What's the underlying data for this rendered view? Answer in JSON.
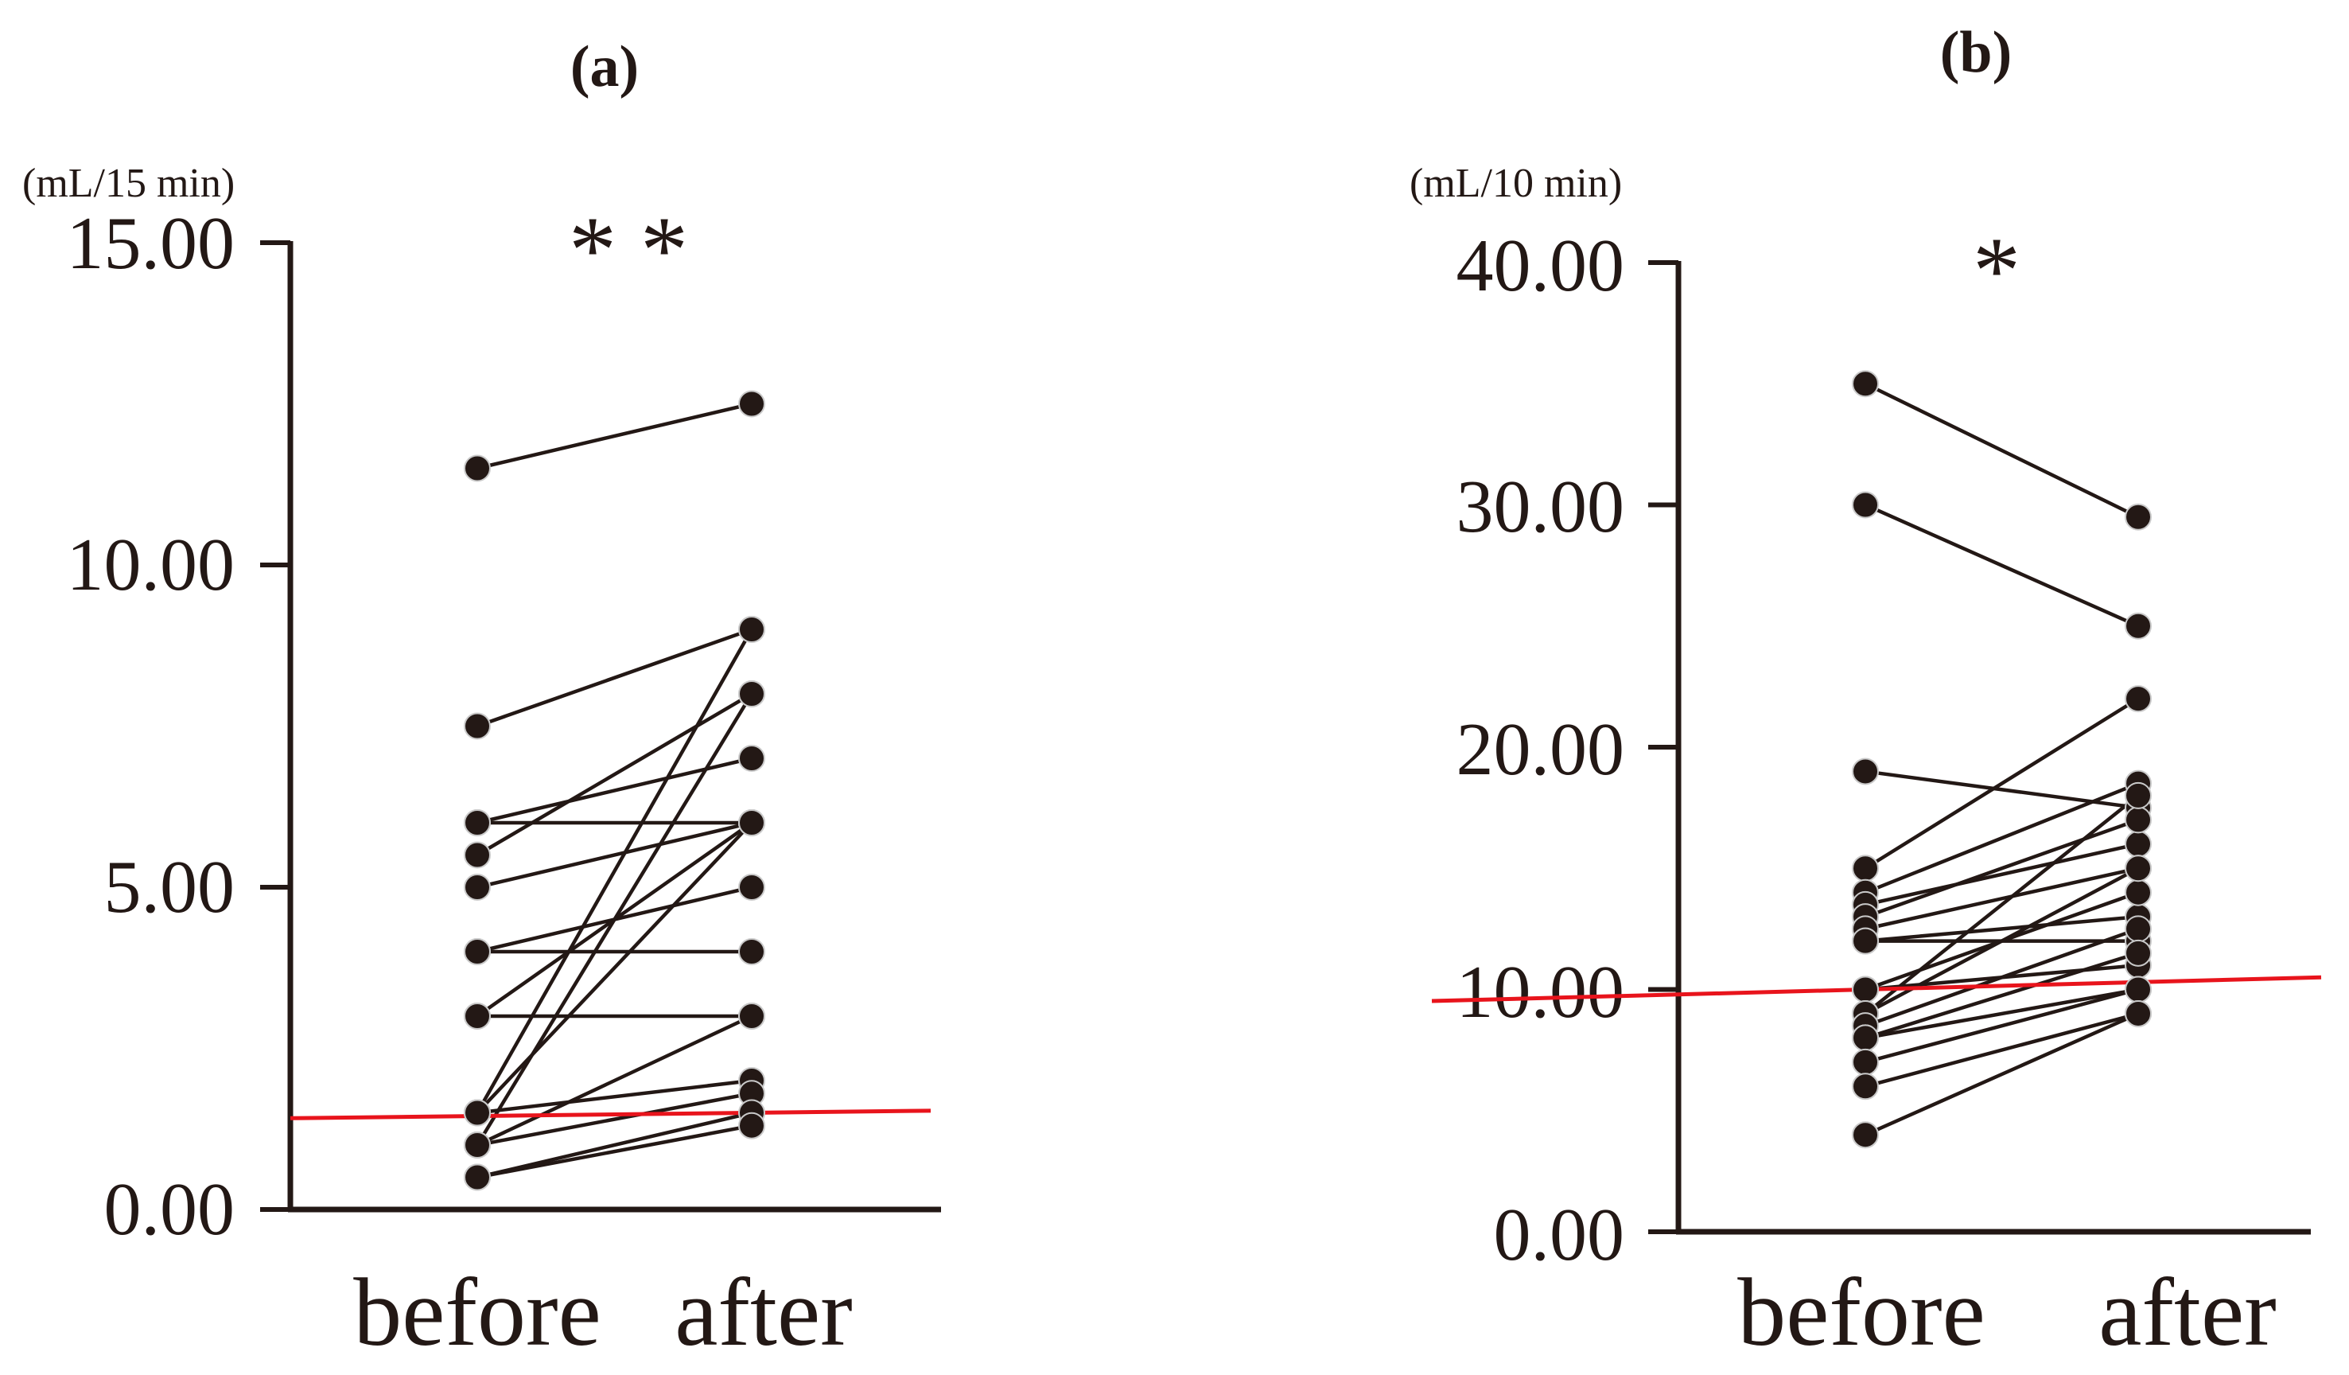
{
  "chart_data": [
    {
      "type": "line",
      "panel": "(a)",
      "title": "(a)",
      "unit": "(mL/15 min)",
      "significance": "* *",
      "categories": [
        "before",
        "after"
      ],
      "yticks": [
        "15.00",
        "10.00",
        "5.00",
        "0.00"
      ],
      "ylim": [
        0,
        15
      ],
      "reference_line": {
        "before": 1.45,
        "after": 1.5,
        "color": "#e8141c"
      },
      "pairs": [
        [
          11.5,
          12.5
        ],
        [
          7.5,
          9.0
        ],
        [
          6.0,
          7.0
        ],
        [
          6.0,
          6.0
        ],
        [
          5.5,
          8.0
        ],
        [
          5.0,
          6.0
        ],
        [
          4.0,
          4.0
        ],
        [
          4.0,
          5.0
        ],
        [
          3.0,
          3.0
        ],
        [
          3.0,
          6.0
        ],
        [
          1.5,
          9.0
        ],
        [
          1.5,
          6.0
        ],
        [
          1.5,
          2.0
        ],
        [
          1.0,
          3.0
        ],
        [
          1.0,
          8.0
        ],
        [
          1.0,
          1.8
        ],
        [
          0.5,
          1.5
        ],
        [
          0.5,
          1.3
        ]
      ]
    },
    {
      "type": "line",
      "panel": "(b)",
      "title": "(b)",
      "unit": "(mL/10 min)",
      "significance": "*",
      "categories": [
        "before",
        "after"
      ],
      "yticks": [
        "40.00",
        "30.00",
        "20.00",
        "10.00",
        "0.00"
      ],
      "ylim": [
        0,
        40
      ],
      "reference_line": {
        "before": 10.0,
        "after": 10.3,
        "color": "#e8141c"
      },
      "pairs": [
        [
          35.0,
          29.5
        ],
        [
          30.0,
          25.0
        ],
        [
          19.0,
          17.5
        ],
        [
          15.0,
          22.0
        ],
        [
          14.0,
          18.5
        ],
        [
          13.5,
          16.0
        ],
        [
          13.0,
          17.0
        ],
        [
          12.5,
          15.0
        ],
        [
          12.0,
          13.0
        ],
        [
          12.0,
          12.0
        ],
        [
          10.0,
          14.0
        ],
        [
          10.0,
          11.0
        ],
        [
          9.0,
          18.0
        ],
        [
          9.0,
          15.0
        ],
        [
          8.5,
          12.5
        ],
        [
          8.0,
          11.5
        ],
        [
          8.0,
          10.0
        ],
        [
          7.0,
          10.0
        ],
        [
          6.0,
          9.0
        ],
        [
          4.0,
          9.0
        ]
      ]
    }
  ]
}
